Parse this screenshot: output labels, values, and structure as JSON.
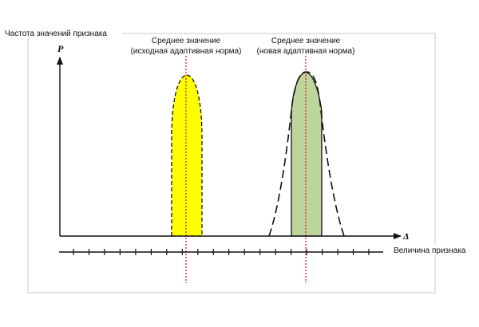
{
  "labels": {
    "frequency_label": "Частота значений признака",
    "magnitude_label": "Величина признака",
    "p_axis_letter": "P",
    "delta_axis_letter": "Δ",
    "mean_original_line1": "Среднее значение",
    "mean_original_line2": "(исходная адаптивная норма)",
    "mean_new_line1": "Среднее значение",
    "mean_new_line2": "(новая адаптивная норма)"
  },
  "colors": {
    "original_fill": "#ffff00",
    "new_fill": "#bcd59a",
    "mean_line": "#e0202a",
    "ink": "#111111",
    "frame": "#c8c8c8"
  },
  "scale": {
    "tick_count": 20
  }
}
